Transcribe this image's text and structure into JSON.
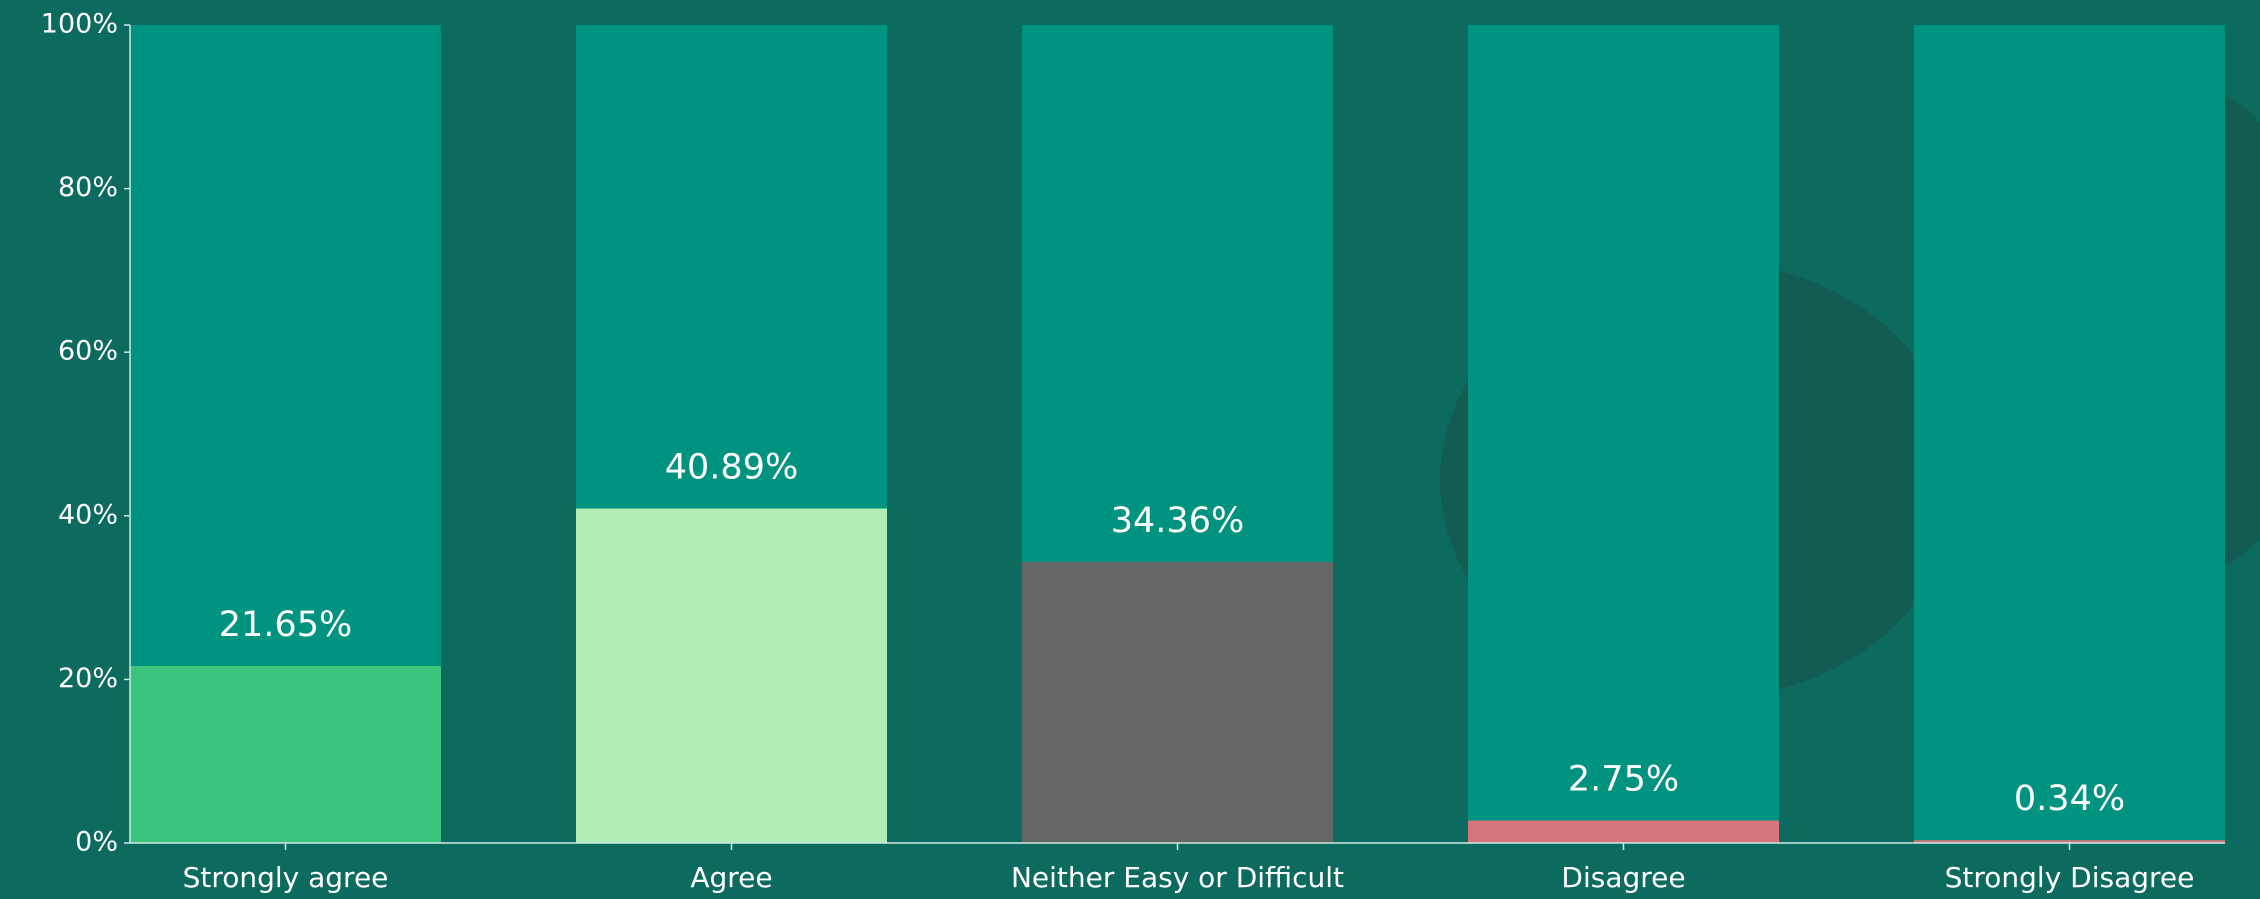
{
  "chart_data": {
    "type": "bar",
    "categories": [
      "Strongly agree",
      "Agree",
      "Neither Easy or Difficult",
      "Disagree",
      "Strongly Disagree"
    ],
    "values": [
      21.65,
      40.89,
      34.36,
      2.75,
      0.34
    ],
    "value_labels": [
      "21.65%",
      "40.89%",
      "34.36%",
      "2.75%",
      "0.34%"
    ],
    "colors": [
      "#3cc47f",
      "#b2ecb5",
      "#666666",
      "#d4767a",
      "#d4767a"
    ],
    "ylim": [
      0,
      100
    ],
    "yticks": [
      {
        "value": 0,
        "label": "0%"
      },
      {
        "value": 20,
        "label": "20%"
      },
      {
        "value": 40,
        "label": "40%"
      },
      {
        "value": 60,
        "label": "60%"
      },
      {
        "value": 80,
        "label": "80%"
      },
      {
        "value": 100,
        "label": "100%"
      }
    ]
  }
}
